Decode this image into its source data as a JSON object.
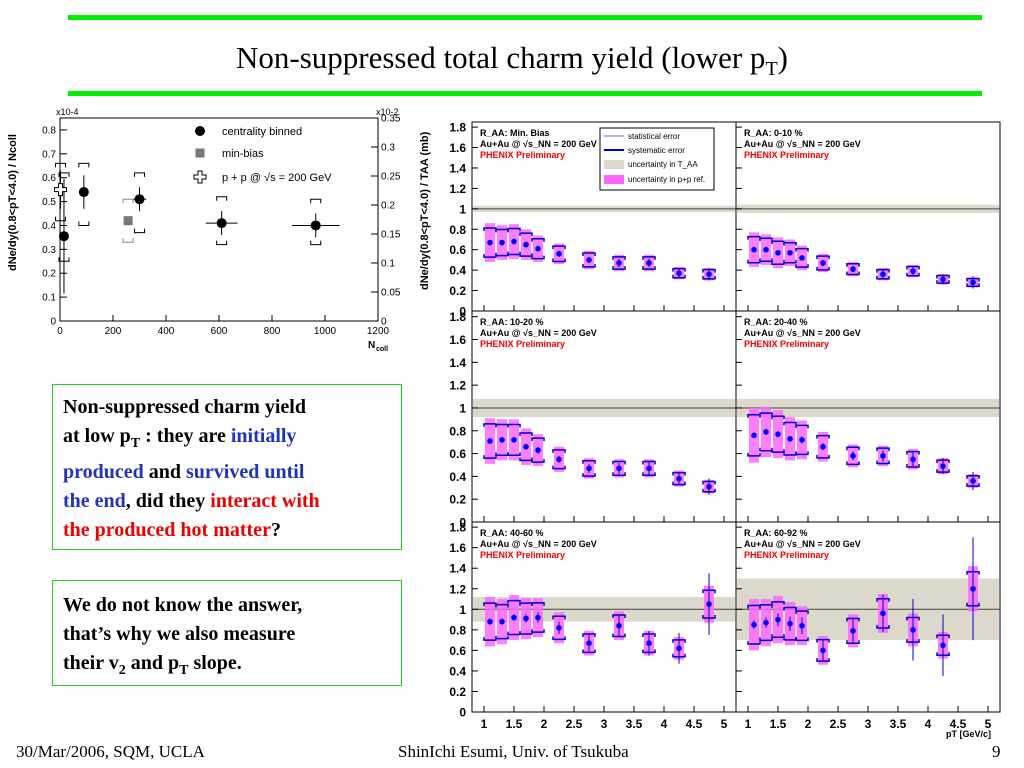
{
  "slide": {
    "title_main": "Non-suppressed total charm yield (lower p",
    "title_sub": "T",
    "title_end": ")"
  },
  "box1": {
    "l1": "Non-suppressed charm yield",
    "l2a": "at low p",
    "l2sub": "T",
    "l2b": " : they are ",
    "l2c": "initially",
    "l3a": "produced",
    "l3b": " and ",
    "l3c": "survived until",
    "l4a": "the end",
    "l4b": ", did they ",
    "l4c": "interact with",
    "l5a": "the produced hot matter",
    "l5b": "?"
  },
  "box2": {
    "l1": "We do not know the answer,",
    "l2": "that’s why we also measure",
    "l3a": "their v",
    "l3sub": "2",
    "l3b": " and p",
    "l3sub2": "T",
    "l3c": " slope."
  },
  "footer": {
    "left": "30/Mar/2006, SQM, UCLA",
    "center": "ShinIchi Esumi, Univ. of Tsukuba",
    "right": "9"
  },
  "colors": {
    "accent_green": "#00ee00",
    "blue_text": "#2233bb",
    "red_text": "#ee0000",
    "pink": "#ff66ff",
    "band": "#ddd8cc",
    "marker_blue": "#0000ff"
  },
  "chart_data": [
    {
      "type": "scatter",
      "xlabel": "N_coll",
      "ylabel": "dN_e/dy(0.8<pT<4.0) / N_coll",
      "left_axis_exponent": "x10^-4",
      "right_axis_exponent": "x10^-2",
      "xlim": [
        0,
        1200
      ],
      "ylim": [
        0,
        0.85
      ],
      "xticks": [
        "0",
        "200",
        "400",
        "600",
        "800",
        "1000",
        "1200"
      ],
      "yticks_left": [
        "0",
        "0.1",
        "0.2",
        "0.3",
        "0.4",
        "0.5",
        "0.6",
        "0.7",
        "0.8"
      ],
      "yticks_right": [
        "0",
        "0.05",
        "0.1",
        "0.15",
        "0.2",
        "0.25",
        "0.3",
        "0.35"
      ],
      "legend": [
        "centrality binned",
        "min-bias",
        "p + p @ √s = 200 GeV"
      ],
      "series": [
        {
          "name": "centrality binned",
          "points": [
            {
              "x": 15,
              "y": 0.355,
              "stat": 0.24,
              "sys": [
                0.25,
                0.62
              ],
              "xerr": 5
            },
            {
              "x": 90,
              "y": 0.54,
              "stat": 0.07,
              "sys": [
                0.4,
                0.66
              ],
              "xerr": 10
            },
            {
              "x": 300,
              "y": 0.51,
              "stat": 0.05,
              "sys": [
                0.37,
                0.62
              ],
              "xerr": 25
            },
            {
              "x": 610,
              "y": 0.41,
              "stat": 0.05,
              "sys": [
                0.32,
                0.52
              ],
              "xerr": 60
            },
            {
              "x": 965,
              "y": 0.4,
              "stat": 0.05,
              "sys": [
                0.32,
                0.51
              ],
              "xerr": 90
            }
          ]
        },
        {
          "name": "min-bias",
          "points": [
            {
              "x": 257,
              "y": 0.42,
              "sys": [
                0.33,
                0.51
              ]
            }
          ]
        },
        {
          "name": "p + p @ √s = 200 GeV",
          "points": [
            {
              "x": 2,
              "y": 0.55,
              "stat": 0.08,
              "sys": [
                0.42,
                0.66
              ]
            }
          ]
        }
      ]
    },
    {
      "type": "scatter",
      "xlabel": "p_T [GeV/c]",
      "ylabel": "dN_e/dy(0.8<pT<4.0) / T_AA (mb)",
      "legend": [
        "statistical error",
        "systematic error",
        "uncertainty in T_AA",
        "uncertainty in p+p ref."
      ],
      "xlim": [
        0.8,
        5.2
      ],
      "ylim": [
        0,
        1.85
      ],
      "xticks": [
        "1",
        "1.5",
        "2",
        "2.5",
        "3",
        "3.5",
        "4",
        "4.5",
        "5"
      ],
      "yticks": [
        "0",
        "0.2",
        "0.4",
        "0.6",
        "0.8",
        "1",
        "1.2",
        "1.4",
        "1.6",
        "1.8"
      ],
      "pt": [
        1.1,
        1.3,
        1.5,
        1.7,
        1.9,
        2.25,
        2.75,
        3.25,
        3.75,
        4.25,
        4.75
      ],
      "panels": [
        {
          "label": "R_AA: Min. Bias",
          "system": "Au+Au @ √s_NN = 200 GeV",
          "status": "PHENIX Preliminary",
          "taa": [
            0.97,
            1.03
          ],
          "y": [
            0.67,
            0.67,
            0.68,
            0.65,
            0.61,
            0.56,
            0.5,
            0.47,
            0.47,
            0.37,
            0.36
          ],
          "stat": [
            0.02,
            0.02,
            0.02,
            0.02,
            0.02,
            0.03,
            0.03,
            0.04,
            0.04,
            0.05,
            0.06
          ],
          "sys": [
            0.19,
            0.17,
            0.17,
            0.15,
            0.13,
            0.1,
            0.09,
            0.08,
            0.08,
            0.06,
            0.06
          ]
        },
        {
          "label": "R_AA: 0-10 %",
          "system": "Au+Au @ √s_NN = 200 GeV",
          "status": "PHENIX Preliminary",
          "taa": [
            0.96,
            1.04
          ],
          "y": [
            0.6,
            0.6,
            0.57,
            0.57,
            0.52,
            0.47,
            0.41,
            0.36,
            0.39,
            0.31,
            0.28
          ],
          "stat": [
            0.02,
            0.02,
            0.02,
            0.02,
            0.02,
            0.03,
            0.03,
            0.04,
            0.04,
            0.05,
            0.06
          ],
          "sys": [
            0.17,
            0.15,
            0.15,
            0.13,
            0.12,
            0.09,
            0.07,
            0.06,
            0.06,
            0.05,
            0.05
          ]
        },
        {
          "label": "R_AA: 10-20 %",
          "system": "Au+Au @ √s_NN = 200 GeV",
          "status": "PHENIX Preliminary",
          "taa": [
            0.92,
            1.08
          ],
          "y": [
            0.71,
            0.72,
            0.72,
            0.66,
            0.63,
            0.55,
            0.47,
            0.47,
            0.47,
            0.38,
            0.31
          ],
          "stat": [
            0.02,
            0.02,
            0.02,
            0.02,
            0.03,
            0.03,
            0.04,
            0.05,
            0.06,
            0.06,
            0.07
          ],
          "sys": [
            0.2,
            0.18,
            0.18,
            0.16,
            0.14,
            0.11,
            0.09,
            0.08,
            0.08,
            0.07,
            0.06
          ]
        },
        {
          "label": "R_AA: 20-40 %",
          "system": "Au+Au @ √s_NN = 200 GeV",
          "status": "PHENIX Preliminary",
          "taa": [
            0.92,
            1.08
          ],
          "y": [
            0.76,
            0.79,
            0.77,
            0.73,
            0.72,
            0.66,
            0.58,
            0.58,
            0.55,
            0.49,
            0.36
          ],
          "stat": [
            0.02,
            0.02,
            0.02,
            0.02,
            0.03,
            0.03,
            0.04,
            0.05,
            0.06,
            0.07,
            0.08
          ],
          "sys": [
            0.24,
            0.22,
            0.21,
            0.19,
            0.17,
            0.13,
            0.1,
            0.09,
            0.09,
            0.07,
            0.06
          ]
        },
        {
          "label": "R_AA: 40-60 %",
          "system": "Au+Au @ √s_NN = 200 GeV",
          "status": "PHENIX Preliminary",
          "taa": [
            0.88,
            1.12
          ],
          "y": [
            0.88,
            0.88,
            0.92,
            0.91,
            0.92,
            0.82,
            0.67,
            0.84,
            0.67,
            0.62,
            1.05
          ],
          "stat": [
            0.03,
            0.03,
            0.03,
            0.04,
            0.05,
            0.06,
            0.08,
            0.1,
            0.12,
            0.15,
            0.3
          ],
          "sys": [
            0.24,
            0.22,
            0.22,
            0.2,
            0.19,
            0.15,
            0.12,
            0.14,
            0.12,
            0.11,
            0.18
          ]
        },
        {
          "label": "R_AA: 60-92 %",
          "system": "Au+Au @ √s_NN = 200 GeV",
          "status": "PHENIX Preliminary",
          "taa": [
            0.7,
            1.3
          ],
          "y": [
            0.85,
            0.87,
            0.9,
            0.86,
            0.84,
            0.6,
            0.79,
            0.96,
            0.8,
            0.65,
            1.2
          ],
          "stat": [
            0.04,
            0.05,
            0.06,
            0.07,
            0.08,
            0.1,
            0.13,
            0.18,
            0.3,
            0.3,
            0.5
          ],
          "sys": [
            0.25,
            0.23,
            0.23,
            0.21,
            0.19,
            0.14,
            0.16,
            0.19,
            0.16,
            0.13,
            0.22
          ]
        }
      ]
    }
  ]
}
